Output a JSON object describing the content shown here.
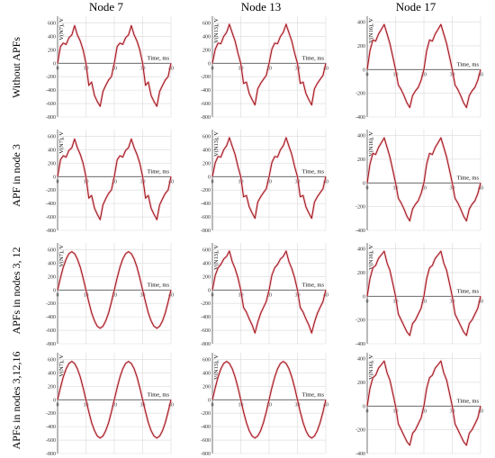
{
  "columns": [
    "Node 7",
    "Node 13",
    "Node 17"
  ],
  "rows": [
    "Without APFs",
    "APF in node 3",
    "APFs in nodes 3, 12",
    "APFs in nodes 3,12,16"
  ],
  "colors": {
    "curve": "#a01818",
    "grid": "#d9d9d9",
    "axis": "#555555",
    "highlight": "#f3b7c8"
  },
  "chart_data": {
    "type": "line",
    "panels_layout": "4 rows x 3 columns",
    "x_axis": {
      "label": "Time, ms",
      "ticks": [
        0,
        10,
        20,
        30,
        40
      ],
      "range": [
        0,
        40
      ]
    },
    "y_axes": {
      "Node 7": {
        "label": "V(N7), V",
        "ticks": [
          -800,
          -600,
          -400,
          -200,
          0,
          200,
          400,
          600
        ],
        "range": [
          -800,
          700
        ]
      },
      "Node 13": {
        "label": "V(N13), V",
        "ticks": [
          -800,
          -600,
          -400,
          -200,
          0,
          200,
          400,
          600
        ],
        "range": [
          -800,
          700
        ]
      },
      "Node 17": {
        "label": "V(N16), V",
        "ticks": [
          -400,
          -200,
          0,
          200,
          400
        ],
        "range": [
          -400,
          450
        ]
      }
    },
    "panels": [
      {
        "row": "Without APFs",
        "column": "Node 7",
        "ylabel": "V(N7), V",
        "x": [
          0,
          1,
          2,
          3,
          4,
          5,
          6,
          7,
          8,
          9,
          10,
          11,
          12,
          13,
          14,
          15,
          16,
          17,
          18,
          19,
          20,
          21,
          22,
          23,
          24,
          25,
          26,
          27,
          28,
          29,
          30,
          31,
          32,
          33,
          34,
          35,
          36,
          37,
          38,
          39,
          40
        ],
        "y": [
          0,
          250,
          300,
          280,
          380,
          420,
          560,
          420,
          330,
          200,
          0,
          -330,
          -280,
          -480,
          -570,
          -640,
          -420,
          -330,
          -250,
          -200,
          0,
          250,
          300,
          280,
          380,
          420,
          560,
          420,
          330,
          200,
          0,
          -330,
          -280,
          -480,
          -570,
          -640,
          -420,
          -330,
          -250,
          -200,
          0
        ]
      },
      {
        "row": "Without APFs",
        "column": "Node 13",
        "ylabel": "V(N13), V",
        "x": [
          0,
          1,
          2,
          3,
          4,
          5,
          6,
          7,
          8,
          9,
          10,
          11,
          12,
          13,
          14,
          15,
          16,
          17,
          18,
          19,
          20,
          21,
          22,
          23,
          24,
          25,
          26,
          27,
          28,
          29,
          30,
          31,
          32,
          33,
          34,
          35,
          36,
          37,
          38,
          39,
          40
        ],
        "y": [
          0,
          210,
          300,
          290,
          400,
          460,
          580,
          450,
          330,
          150,
          0,
          -300,
          -280,
          -450,
          -540,
          -620,
          -380,
          -300,
          -240,
          -180,
          0,
          210,
          300,
          290,
          400,
          460,
          580,
          450,
          330,
          150,
          0,
          -300,
          -280,
          -450,
          -540,
          -620,
          -380,
          -300,
          -240,
          -180,
          0
        ]
      },
      {
        "row": "Without APFs",
        "column": "Node 17",
        "ylabel": "V(N16), V",
        "x": [
          0,
          1,
          2,
          3,
          4,
          5,
          6,
          7,
          8,
          9,
          10,
          11,
          12,
          13,
          14,
          15,
          16,
          17,
          18,
          19,
          20,
          21,
          22,
          23,
          24,
          25,
          26,
          27,
          28,
          29,
          30,
          31,
          32,
          33,
          34,
          35,
          36,
          37,
          38,
          39,
          40
        ],
        "y": [
          0,
          160,
          250,
          240,
          300,
          340,
          380,
          300,
          220,
          110,
          0,
          -130,
          -170,
          -220,
          -280,
          -320,
          -220,
          -180,
          -150,
          -90,
          0,
          160,
          250,
          240,
          300,
          340,
          380,
          300,
          220,
          110,
          0,
          -130,
          -170,
          -220,
          -280,
          -320,
          -220,
          -180,
          -150,
          -90,
          0
        ]
      },
      {
        "row": "APF in node 3",
        "column": "Node 7",
        "ylabel": "V(N7), V",
        "x": [
          0,
          1,
          2,
          3,
          4,
          5,
          6,
          7,
          8,
          9,
          10,
          11,
          12,
          13,
          14,
          15,
          16,
          17,
          18,
          19,
          20,
          21,
          22,
          23,
          24,
          25,
          26,
          27,
          28,
          29,
          30,
          31,
          32,
          33,
          34,
          35,
          36,
          37,
          38,
          39,
          40
        ],
        "y": [
          0,
          250,
          310,
          290,
          390,
          430,
          560,
          430,
          330,
          200,
          0,
          -320,
          -280,
          -470,
          -560,
          -640,
          -420,
          -330,
          -250,
          -200,
          0,
          250,
          310,
          290,
          390,
          430,
          560,
          430,
          330,
          200,
          0,
          -320,
          -280,
          -470,
          -560,
          -640,
          -420,
          -330,
          -250,
          -200,
          0
        ]
      },
      {
        "row": "APF in node 3",
        "column": "Node 13",
        "ylabel": "V(N13), V",
        "x": [
          0,
          1,
          2,
          3,
          4,
          5,
          6,
          7,
          8,
          9,
          10,
          11,
          12,
          13,
          14,
          15,
          16,
          17,
          18,
          19,
          20,
          21,
          22,
          23,
          24,
          25,
          26,
          27,
          28,
          29,
          30,
          31,
          32,
          33,
          34,
          35,
          36,
          37,
          38,
          39,
          40
        ],
        "y": [
          0,
          210,
          300,
          290,
          400,
          460,
          580,
          450,
          330,
          150,
          0,
          -300,
          -280,
          -450,
          -540,
          -620,
          -380,
          -300,
          -240,
          -180,
          0,
          210,
          300,
          290,
          400,
          460,
          580,
          450,
          330,
          150,
          0,
          -300,
          -280,
          -450,
          -540,
          -620,
          -380,
          -300,
          -240,
          -180,
          0
        ]
      },
      {
        "row": "APF in node 3",
        "column": "Node 17",
        "ylabel": "V(N16), V",
        "x": [
          0,
          1,
          2,
          3,
          4,
          5,
          6,
          7,
          8,
          9,
          10,
          11,
          12,
          13,
          14,
          15,
          16,
          17,
          18,
          19,
          20,
          21,
          22,
          23,
          24,
          25,
          26,
          27,
          28,
          29,
          30,
          31,
          32,
          33,
          34,
          35,
          36,
          37,
          38,
          39,
          40
        ],
        "y": [
          0,
          160,
          250,
          240,
          300,
          340,
          380,
          300,
          220,
          110,
          0,
          -130,
          -170,
          -220,
          -280,
          -320,
          -220,
          -180,
          -150,
          -90,
          0,
          160,
          250,
          240,
          300,
          340,
          380,
          300,
          220,
          110,
          0,
          -130,
          -170,
          -220,
          -280,
          -320,
          -220,
          -180,
          -150,
          -90,
          0
        ]
      },
      {
        "row": "APFs in nodes 3, 12",
        "column": "Node 7",
        "ylabel": "V(N7), V",
        "x": [
          0,
          1,
          2,
          3,
          4,
          5,
          6,
          7,
          8,
          9,
          10,
          11,
          12,
          13,
          14,
          15,
          16,
          17,
          18,
          19,
          20,
          21,
          22,
          23,
          24,
          25,
          26,
          27,
          28,
          29,
          30,
          31,
          32,
          33,
          34,
          35,
          36,
          37,
          38,
          39,
          40
        ],
        "y": [
          0,
          180,
          340,
          460,
          540,
          570,
          540,
          460,
          340,
          180,
          0,
          -180,
          -340,
          -460,
          -540,
          -570,
          -540,
          -460,
          -340,
          -180,
          0,
          180,
          340,
          460,
          540,
          570,
          540,
          460,
          340,
          180,
          0,
          -180,
          -340,
          -460,
          -540,
          -570,
          -540,
          -460,
          -340,
          -180,
          0
        ]
      },
      {
        "row": "APFs in nodes 3, 12",
        "column": "Node 13",
        "ylabel": "V(N13), V",
        "x": [
          0,
          1,
          2,
          3,
          4,
          5,
          6,
          7,
          8,
          9,
          10,
          11,
          12,
          13,
          14,
          15,
          16,
          17,
          18,
          19,
          20,
          21,
          22,
          23,
          24,
          25,
          26,
          27,
          28,
          29,
          30,
          31,
          32,
          33,
          34,
          35,
          36,
          37,
          38,
          39,
          40
        ],
        "y": [
          0,
          220,
          330,
          380,
          460,
          500,
          580,
          420,
          320,
          180,
          0,
          -260,
          -330,
          -430,
          -520,
          -640,
          -480,
          -350,
          -260,
          -170,
          0,
          220,
          330,
          380,
          460,
          500,
          580,
          420,
          320,
          180,
          0,
          -260,
          -330,
          -430,
          -520,
          -640,
          -480,
          -350,
          -260,
          -170,
          0
        ]
      },
      {
        "row": "APFs in nodes 3, 12",
        "column": "Node 17",
        "ylabel": "V(N16), V",
        "x": [
          0,
          1,
          2,
          3,
          4,
          5,
          6,
          7,
          8,
          9,
          10,
          11,
          12,
          13,
          14,
          15,
          16,
          17,
          18,
          19,
          20,
          21,
          22,
          23,
          24,
          25,
          26,
          27,
          28,
          29,
          30,
          31,
          32,
          33,
          34,
          35,
          36,
          37,
          38,
          39,
          40
        ],
        "y": [
          0,
          150,
          240,
          260,
          320,
          350,
          380,
          280,
          220,
          110,
          0,
          -150,
          -200,
          -250,
          -300,
          -330,
          -230,
          -200,
          -150,
          -100,
          0,
          150,
          240,
          260,
          320,
          350,
          380,
          280,
          220,
          110,
          0,
          -150,
          -200,
          -250,
          -300,
          -330,
          -230,
          -200,
          -150,
          -100,
          0
        ]
      },
      {
        "row": "APFs in nodes 3,12,16",
        "column": "Node 7",
        "ylabel": "V(N7), V",
        "x": [
          0,
          1,
          2,
          3,
          4,
          5,
          6,
          7,
          8,
          9,
          10,
          11,
          12,
          13,
          14,
          15,
          16,
          17,
          18,
          19,
          20,
          21,
          22,
          23,
          24,
          25,
          26,
          27,
          28,
          29,
          30,
          31,
          32,
          33,
          34,
          35,
          36,
          37,
          38,
          39,
          40
        ],
        "y": [
          0,
          180,
          340,
          460,
          540,
          570,
          540,
          460,
          340,
          180,
          0,
          -180,
          -340,
          -460,
          -540,
          -570,
          -540,
          -460,
          -340,
          -180,
          0,
          180,
          340,
          460,
          540,
          570,
          540,
          460,
          340,
          180,
          0,
          -180,
          -340,
          -460,
          -540,
          -570,
          -540,
          -460,
          -340,
          -180,
          0
        ]
      },
      {
        "row": "APFs in nodes 3,12,16",
        "column": "Node 13",
        "ylabel": "V(N13), V",
        "x": [
          0,
          1,
          2,
          3,
          4,
          5,
          6,
          7,
          8,
          9,
          10,
          11,
          12,
          13,
          14,
          15,
          16,
          17,
          18,
          19,
          20,
          21,
          22,
          23,
          24,
          25,
          26,
          27,
          28,
          29,
          30,
          31,
          32,
          33,
          34,
          35,
          36,
          37,
          38,
          39,
          40
        ],
        "y": [
          0,
          180,
          340,
          460,
          540,
          570,
          540,
          460,
          340,
          180,
          0,
          -180,
          -340,
          -460,
          -540,
          -570,
          -540,
          -460,
          -340,
          -180,
          0,
          180,
          340,
          460,
          540,
          570,
          540,
          460,
          340,
          180,
          0,
          -180,
          -340,
          -460,
          -540,
          -570,
          -540,
          -460,
          -340,
          -180,
          0
        ]
      },
      {
        "row": "APFs in nodes 3,12,16",
        "column": "Node 17",
        "ylabel": "V(N16), V",
        "x": [
          0,
          1,
          2,
          3,
          4,
          5,
          6,
          7,
          8,
          9,
          10,
          11,
          12,
          13,
          14,
          15,
          16,
          17,
          18,
          19,
          20,
          21,
          22,
          23,
          24,
          25,
          26,
          27,
          28,
          29,
          30,
          31,
          32,
          33,
          34,
          35,
          36,
          37,
          38,
          39,
          40
        ],
        "y": [
          0,
          150,
          240,
          260,
          320,
          350,
          380,
          280,
          220,
          110,
          0,
          -150,
          -200,
          -250,
          -300,
          -330,
          -230,
          -200,
          -150,
          -100,
          0,
          150,
          240,
          260,
          320,
          350,
          380,
          280,
          220,
          110,
          0,
          -150,
          -200,
          -250,
          -300,
          -330,
          -230,
          -200,
          -150,
          -100,
          0
        ]
      }
    ]
  }
}
